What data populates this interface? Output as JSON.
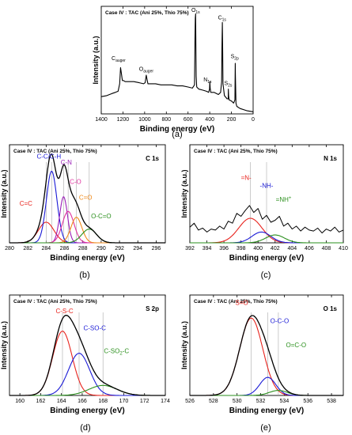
{
  "figure": {
    "panel_captions": [
      "(a)",
      "(b)",
      "(c)",
      "(d)",
      "(e)"
    ]
  },
  "chart_data": [
    {
      "id": "a",
      "type": "line",
      "title": "Case IV : TAC (Ani 25%, Thio 75%)",
      "subtitle": "",
      "xlabel": "Binding energy (eV)",
      "ylabel": "Intensity (a.u.)",
      "xlim": [
        1400,
        0
      ],
      "x_reversed": true,
      "x_ticks": [
        1400,
        1200,
        1000,
        800,
        600,
        400,
        200,
        0
      ],
      "ylim": [
        0,
        100
      ],
      "y_ticks_labeled": false,
      "grid": false,
      "series": [
        {
          "color": "#000000",
          "x": [
            1400,
            1350,
            1300,
            1270,
            1245,
            1230,
            1222,
            1215,
            1205,
            1195,
            1180,
            1150,
            1100,
            1050,
            1010,
            995,
            985,
            978,
            970,
            950,
            900,
            850,
            800,
            750,
            700,
            650,
            600,
            560,
            540,
            536,
            533,
            530,
            525,
            520,
            500,
            460,
            430,
            410,
            402,
            399,
            396,
            390,
            360,
            320,
            300,
            290,
            287,
            284,
            281,
            278,
            265,
            240,
            230,
            228,
            226,
            222,
            200,
            180,
            168,
            165,
            163,
            160,
            158,
            150,
            120,
            60,
            0
          ],
          "y": [
            16,
            17,
            19,
            20,
            21,
            28,
            43,
            38,
            31,
            31,
            30,
            30,
            30,
            29,
            28,
            29,
            36,
            32,
            28,
            28,
            28,
            27,
            27,
            27,
            26,
            26,
            25,
            24,
            27,
            70,
            89,
            93,
            35,
            25,
            23,
            22,
            21,
            20,
            23,
            30,
            24,
            20,
            20,
            18,
            20,
            30,
            62,
            85,
            60,
            28,
            17,
            14,
            14,
            23,
            17,
            13,
            12,
            10,
            13,
            47,
            36,
            18,
            10,
            7,
            5,
            3,
            2
          ]
        }
      ],
      "annotations": [
        {
          "label": "C",
          "sub": "auger",
          "x": 1240,
          "y": 50
        },
        {
          "label": "O",
          "sub": "auger",
          "x": 985,
          "y": 40
        },
        {
          "label": "O",
          "sub": "1s",
          "x": 530,
          "y": 95
        },
        {
          "label": "C",
          "sub": "1s",
          "x": 286,
          "y": 88
        },
        {
          "label": "N",
          "sub": "1s",
          "x": 420,
          "y": 30
        },
        {
          "label": "S",
          "sub": "2s",
          "x": 230,
          "y": 27
        },
        {
          "label": "S",
          "sub": "2p",
          "x": 170,
          "y": 52
        }
      ]
    },
    {
      "id": "b",
      "type": "line",
      "title": "Case IV : TAC (Ani 25%, Thio 75%)",
      "corner_label": "C 1s",
      "xlabel": "Binding energy (eV)",
      "ylabel": "Intensity (a.u.)",
      "xlim": [
        280,
        297
      ],
      "x_ticks": [
        280,
        282,
        284,
        286,
        288,
        290,
        292,
        294,
        296
      ],
      "ylim": [
        0,
        100
      ],
      "y_ticks_labeled": false,
      "grid": false,
      "vlines": [
        284,
        284.6,
        285.9,
        286.4,
        287.3,
        288.7
      ],
      "peaks": [
        {
          "name": "C=C",
          "center": 284.0,
          "height": 21,
          "fwhm": 2.0,
          "color": "#e8231d"
        },
        {
          "name": "C-C/C-H",
          "center": 284.6,
          "height": 73,
          "fwhm": 1.35,
          "color": "#1a1ad6"
        },
        {
          "name": "C-N",
          "center": 285.9,
          "height": 47,
          "fwhm": 1.0,
          "color": "#9b1fb8"
        },
        {
          "name": "C-O",
          "center": 286.4,
          "height": 32,
          "fwhm": 1.5,
          "color": "#e0309e"
        },
        {
          "name": "C=O",
          "center": 287.3,
          "height": 26,
          "fwhm": 1.4,
          "color": "#f08a1a"
        },
        {
          "name": "O-C=O",
          "center": 288.7,
          "height": 14,
          "fwhm": 1.9,
          "color": "#2a8f1c"
        }
      ],
      "labels": [
        {
          "text": "C-C/C-H",
          "x": 284.3,
          "y": 86,
          "color": "#1a1ad6"
        },
        {
          "text": "C-N",
          "x": 286.2,
          "y": 80,
          "color": "#9b1fb8"
        },
        {
          "text": "C-O",
          "x": 287.2,
          "y": 60,
          "color": "#e0309e"
        },
        {
          "text": "C=C",
          "x": 281.8,
          "y": 38,
          "color": "#e8231d"
        },
        {
          "text": "C=O",
          "x": 288.3,
          "y": 44,
          "color": "#f08a1a"
        },
        {
          "text": "O-C=O",
          "x": 290.0,
          "y": 25,
          "color": "#2a8f1c"
        }
      ]
    },
    {
      "id": "c",
      "type": "line",
      "title": "Case IV : TAC (Ani 25%, Thio 75%)",
      "corner_label": "N 1s",
      "xlabel": "Binding energy (eV)",
      "ylabel": "Intensity (a.u.)",
      "xlim": [
        392,
        410
      ],
      "x_ticks": [
        392,
        394,
        396,
        398,
        400,
        402,
        404,
        406,
        408,
        410
      ],
      "ylim": [
        0,
        100
      ],
      "y_ticks_labeled": false,
      "grid": false,
      "vlines": [
        399.1,
        401.0
      ],
      "raw_spectrum": {
        "color": "#000000",
        "x": [
          392,
          392.5,
          393,
          393.5,
          394,
          394.5,
          395,
          395.5,
          396,
          396.5,
          397,
          397.5,
          398,
          398.5,
          399,
          399.5,
          400,
          400.5,
          401,
          401.5,
          402,
          402.5,
          403,
          403.5,
          404,
          404.5,
          405,
          405.5,
          406,
          406.5,
          407,
          407.5,
          408,
          408.5,
          409,
          409.5,
          410
        ],
        "y": [
          16,
          20,
          13,
          15,
          11,
          14,
          13,
          17,
          14,
          22,
          20,
          30,
          27,
          33,
          38,
          31,
          35,
          24,
          28,
          21,
          23,
          27,
          17,
          20,
          14,
          17,
          12,
          16,
          13,
          12,
          15,
          10,
          14,
          12,
          16,
          11,
          13
        ]
      },
      "peaks": [
        {
          "name": "=N-",
          "center": 399.1,
          "height": 25,
          "fwhm": 3.2,
          "color": "#e8231d"
        },
        {
          "name": "-NH-",
          "center": 400.4,
          "height": 11,
          "fwhm": 2.6,
          "color": "#1a1ad6"
        },
        {
          "name": "=NH+",
          "center": 402.0,
          "height": 8,
          "fwhm": 2.6,
          "color": "#2a8f1c"
        }
      ],
      "labels": [
        {
          "text": "=N-",
          "x": 398.6,
          "y": 64,
          "color": "#e8231d"
        },
        {
          "text": "-NH-",
          "x": 401.0,
          "y": 56,
          "color": "#1a1ad6"
        },
        {
          "text": "=NH",
          "sup": "+",
          "x": 403.0,
          "y": 42,
          "color": "#2a8f1c"
        }
      ]
    },
    {
      "id": "d",
      "type": "line",
      "title": "Case IV : TAC (Ani 25%, Thio 75%)",
      "corner_label": "S 2p",
      "xlabel": "Binding energy (eV)",
      "ylabel": "Intensity (a.u.)",
      "xlim": [
        159,
        174
      ],
      "x_ticks": [
        160,
        162,
        164,
        166,
        168,
        170,
        172,
        174
      ],
      "ylim": [
        0,
        100
      ],
      "y_ticks_labeled": false,
      "grid": false,
      "vlines": [
        164.1,
        165.7,
        168.0
      ],
      "peaks": [
        {
          "name": "C-S-C",
          "center": 164.1,
          "height": 64,
          "fwhm": 2.2,
          "color": "#e8231d"
        },
        {
          "name": "C-SO-C",
          "center": 165.7,
          "height": 42,
          "fwhm": 2.4,
          "color": "#1a1ad6"
        },
        {
          "name": "C-SO2-C",
          "center": 168.0,
          "height": 10,
          "fwhm": 3.2,
          "color": "#2a8f1c"
        }
      ],
      "labels": [
        {
          "text": "C-S-C",
          "x": 164.3,
          "y": 82,
          "color": "#e8231d"
        },
        {
          "text": "C-SO-C",
          "x": 167.2,
          "y": 65,
          "color": "#1a1ad6"
        },
        {
          "text": "C-SO",
          "sub": "2",
          "after": "-C",
          "x": 169.3,
          "y": 42,
          "color": "#2a8f1c"
        }
      ]
    },
    {
      "id": "e",
      "type": "line",
      "title": "Case IV : TAC (Ani 25%, Thio 75%)",
      "corner_label": "O 1s",
      "xlabel": "Binding energy (eV)",
      "ylabel": "Intensity (a.u.)",
      "xlim": [
        526,
        539
      ],
      "x_ticks": [
        526,
        528,
        530,
        532,
        534,
        536,
        538
      ],
      "ylim": [
        0,
        100
      ],
      "y_ticks_labeled": false,
      "grid": false,
      "vlines": [
        531.2,
        532.6,
        533.5
      ],
      "peaks": [
        {
          "name": "S=O",
          "center": 531.2,
          "height": 77,
          "fwhm": 2.3,
          "color": "#e8231d"
        },
        {
          "name": "O-C-O",
          "center": 532.6,
          "height": 18,
          "fwhm": 1.6,
          "color": "#1a1ad6"
        },
        {
          "name": "O=C-O",
          "center": 533.5,
          "height": 5,
          "fwhm": 1.8,
          "color": "#2a8f1c"
        }
      ],
      "labels": [
        {
          "text": "S=O",
          "x": 530.4,
          "y": 90,
          "color": "#e8231d"
        },
        {
          "text": "O-C-O",
          "x": 533.6,
          "y": 72,
          "color": "#1a1ad6"
        },
        {
          "text": "O=C-O",
          "x": 535.0,
          "y": 48,
          "color": "#2a8f1c"
        }
      ]
    }
  ]
}
